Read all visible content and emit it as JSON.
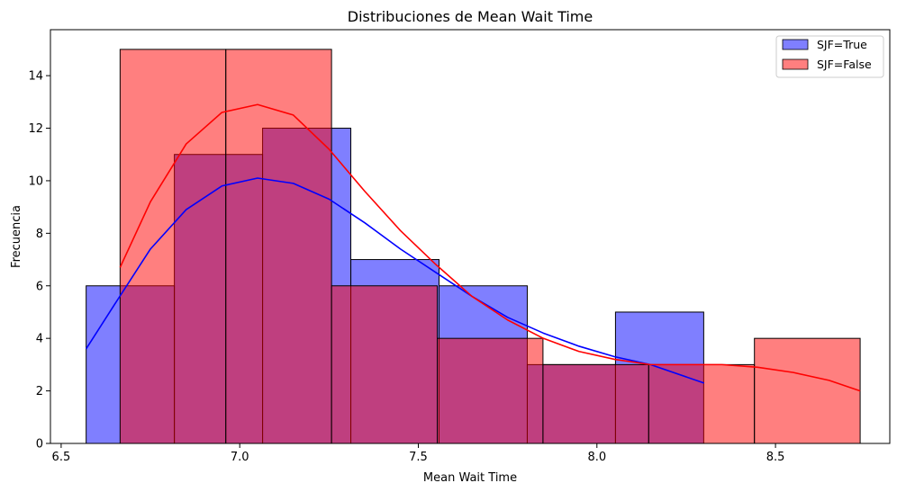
{
  "chart_data": {
    "type": "bar",
    "subtype": "overlaid histogram with KDE",
    "title": "Distribuciones de Mean Wait Time",
    "xlabel": "Mean Wait Time",
    "ylabel": "Frecuencia",
    "xlim": [
      6.47,
      8.82
    ],
    "ylim": [
      0,
      15.75
    ],
    "xticks": [
      6.5,
      7.0,
      7.5,
      8.0,
      8.5
    ],
    "xtick_labels": [
      "6.5",
      "7.0",
      "7.5",
      "8.0",
      "8.5"
    ],
    "yticks": [
      0,
      2,
      4,
      6,
      8,
      10,
      12,
      14
    ],
    "yticks_labels": [
      "0",
      "2",
      "4",
      "6",
      "8",
      "10",
      "12",
      "14"
    ],
    "grid": false,
    "legend_position": "top-right",
    "series": [
      {
        "name": "SJF=True",
        "color": "#0000ff",
        "bin_edges": [
          6.57,
          6.817,
          7.064,
          7.311,
          7.558,
          7.805,
          8.052,
          8.299
        ],
        "counts": [
          6,
          11,
          12,
          7,
          6,
          3,
          5
        ],
        "kde_x": [
          6.57,
          6.65,
          6.75,
          6.85,
          6.95,
          7.05,
          7.15,
          7.25,
          7.35,
          7.45,
          7.55,
          7.65,
          7.75,
          7.85,
          7.95,
          8.05,
          8.15,
          8.3
        ],
        "kde_y": [
          3.6,
          5.3,
          7.4,
          8.9,
          9.8,
          10.1,
          9.9,
          9.3,
          8.4,
          7.4,
          6.5,
          5.6,
          4.8,
          4.2,
          3.7,
          3.3,
          3.0,
          2.3
        ]
      },
      {
        "name": "SJF=False",
        "color": "#ff0000",
        "bin_edges": [
          6.665,
          6.961,
          7.257,
          7.553,
          7.849,
          8.145,
          8.441,
          8.737
        ],
        "counts": [
          15,
          15,
          6,
          4,
          3,
          3,
          4
        ],
        "kde_x": [
          6.665,
          6.75,
          6.85,
          6.95,
          7.05,
          7.15,
          7.25,
          7.35,
          7.45,
          7.55,
          7.65,
          7.75,
          7.85,
          7.95,
          8.05,
          8.15,
          8.25,
          8.35,
          8.45,
          8.55,
          8.65,
          8.737
        ],
        "kde_y": [
          6.7,
          9.2,
          11.4,
          12.6,
          12.9,
          12.5,
          11.2,
          9.6,
          8.1,
          6.8,
          5.6,
          4.7,
          4.0,
          3.5,
          3.2,
          3.0,
          3.0,
          3.0,
          2.9,
          2.7,
          2.4,
          2.0
        ]
      }
    ]
  }
}
